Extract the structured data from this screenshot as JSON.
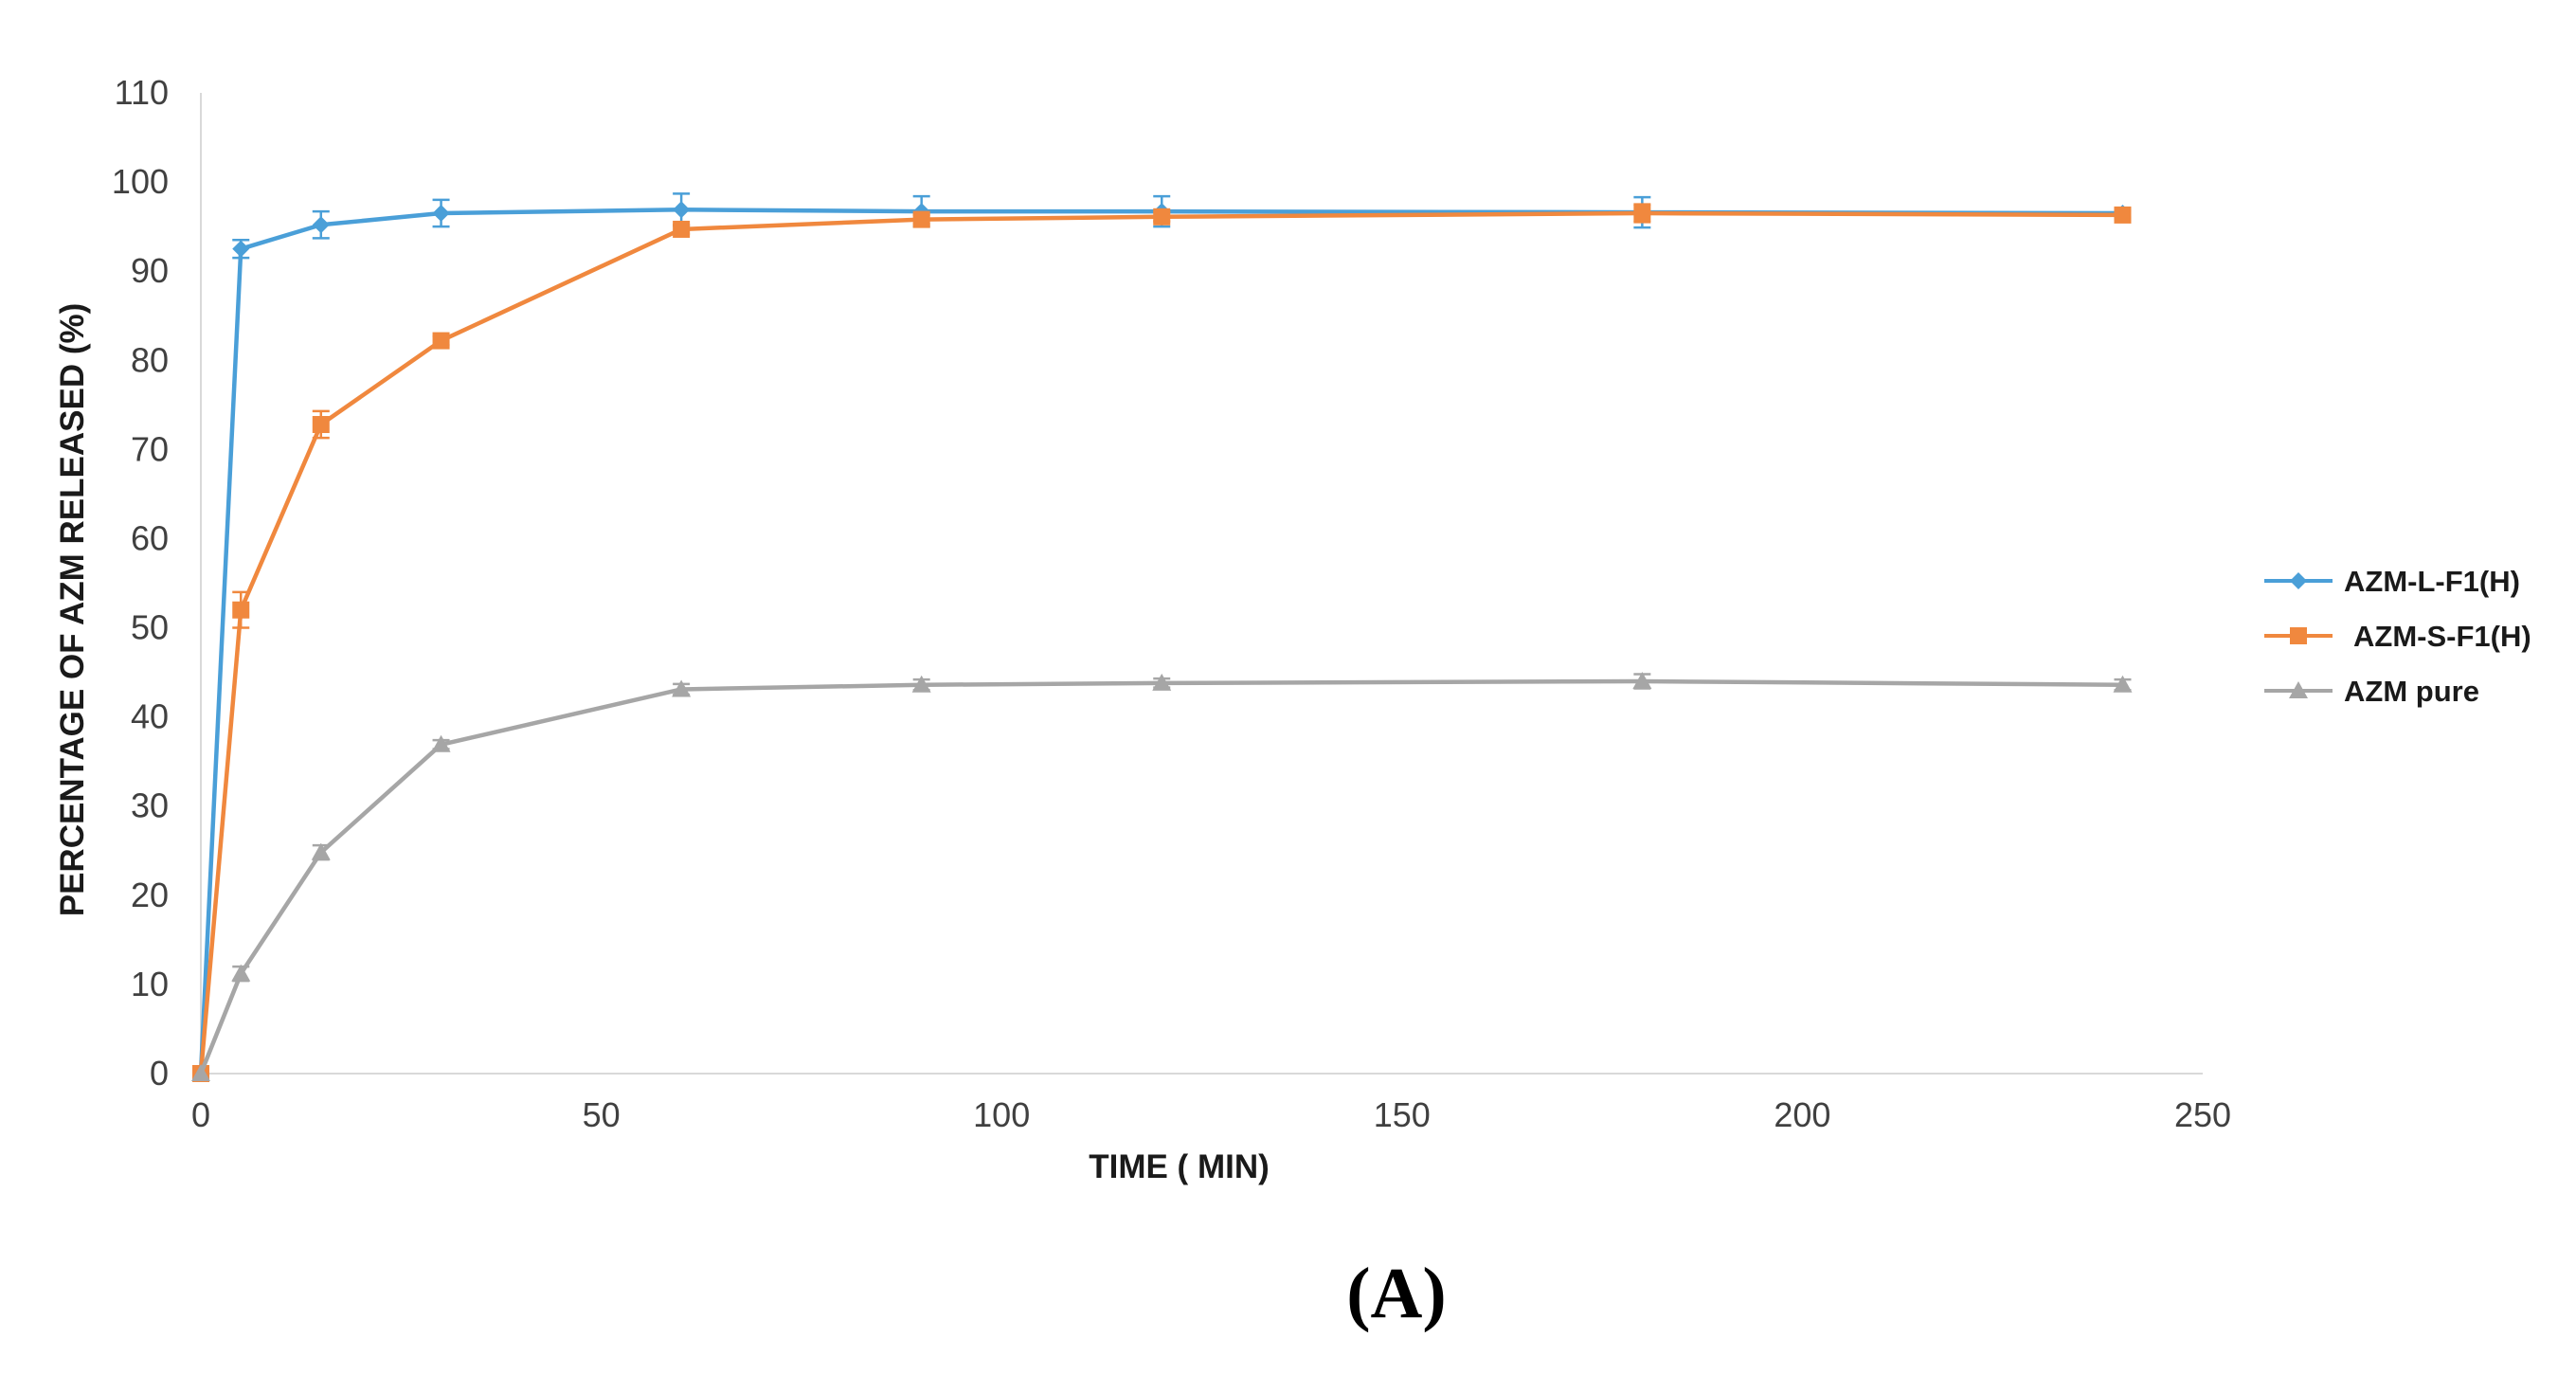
{
  "chart_data": {
    "type": "line",
    "title": "",
    "xlabel": "TIME ( MIN)",
    "ylabel": "PERCENTAGE OF AZM RELEASED (%)",
    "xlim": [
      0,
      250
    ],
    "ylim": [
      0,
      110
    ],
    "xticks": [
      "0",
      "50",
      "100",
      "150",
      "200",
      "250"
    ],
    "yticks": [
      "0",
      "10",
      "20",
      "30",
      "40",
      "50",
      "60",
      "70",
      "80",
      "90",
      "100",
      "110"
    ],
    "grid": false,
    "legend_position": "right",
    "x": [
      0,
      5,
      15,
      30,
      60,
      90,
      120,
      180,
      240
    ],
    "series": [
      {
        "name": "AZM-L-F1(H)",
        "color": "#4a9fd8",
        "marker": "diamond",
        "values": [
          0,
          92.5,
          95.2,
          96.5,
          96.9,
          96.7,
          96.7,
          96.6,
          96.5
        ],
        "errors": [
          0,
          1.0,
          1.5,
          1.5,
          1.8,
          1.7,
          1.7,
          1.7,
          0.5
        ]
      },
      {
        "name": "AZM-S-F1(H)",
        "color": "#f0883e",
        "marker": "square",
        "values": [
          0,
          52,
          72.8,
          82.2,
          94.7,
          95.8,
          96.1,
          96.5,
          96.3
        ],
        "errors": [
          0,
          2.0,
          1.5,
          0.5,
          0.5,
          0.5,
          0.5,
          1.0,
          0.5
        ]
      },
      {
        "name": "AZM pure",
        "color": "#a6a6a6",
        "marker": "triangle",
        "values": [
          0,
          11.2,
          24.8,
          36.9,
          43.1,
          43.6,
          43.8,
          44.0,
          43.6
        ],
        "errors": [
          0,
          0.8,
          0.8,
          0.5,
          0.6,
          0.6,
          0.5,
          0.8,
          0.6
        ]
      }
    ],
    "panel_label": "(A)"
  }
}
